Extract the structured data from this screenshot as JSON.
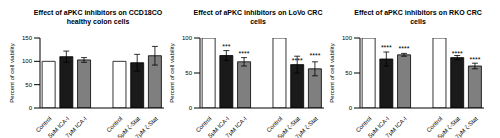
{
  "chart_data": [
    {
      "type": "bar",
      "title": "Effect of aPKC inhibitors on CCD18CO healthy colon cells",
      "y_label": "Percent of cell viability",
      "categories": [
        "Control",
        "5μM ICA-I",
        "7μM ICA-I",
        null,
        "Control",
        "5μM ζ-Stat",
        "7μM ζ-Stat"
      ],
      "values": [
        100,
        110,
        103,
        null,
        100,
        97,
        112
      ],
      "errors": [
        null,
        12,
        5,
        null,
        null,
        18,
        20
      ],
      "annotations": [
        null,
        null,
        null,
        null,
        null,
        null,
        null
      ],
      "colors": [
        "#ffffff",
        "#1a1a1a",
        "#7f7f7f",
        null,
        "#ffffff",
        "#1a1a1a",
        "#7f7f7f"
      ],
      "ylim": [
        0,
        150
      ],
      "yticks": [
        0,
        50,
        100,
        150
      ]
    },
    {
      "type": "bar",
      "title": "Effect of aPKC inhibitors on LoVo CRC cells",
      "y_label": "Percent of cell viability",
      "categories": [
        "Control",
        "5μM ICA-I",
        "7μM ICA-I",
        null,
        "Control",
        "5μM ζ-Stat",
        "7μM ζ-Stat"
      ],
      "values": [
        100,
        75,
        66,
        null,
        100,
        62,
        56
      ],
      "errors": [
        null,
        7,
        6,
        null,
        null,
        12,
        10
      ],
      "annotations": [
        null,
        "***",
        "****",
        null,
        null,
        "****",
        "****"
      ],
      "colors": [
        "#ffffff",
        "#1a1a1a",
        "#7f7f7f",
        null,
        "#ffffff",
        "#1a1a1a",
        "#7f7f7f"
      ],
      "ylim": [
        0,
        100
      ],
      "yticks": [
        0,
        50,
        100
      ]
    },
    {
      "type": "bar",
      "title": "Effect of aPKC inhibitors on RKO CRC cells",
      "y_label": "Percent of cell viability",
      "categories": [
        "Control",
        "5μM ICA-I",
        "7μM ICA-I",
        null,
        "Control",
        "5μM ζ-Stat",
        "7μM ζ-Stat"
      ],
      "values": [
        100,
        70,
        76,
        null,
        100,
        72,
        60
      ],
      "errors": [
        null,
        10,
        2,
        null,
        null,
        3,
        4
      ],
      "annotations": [
        null,
        "****",
        "****",
        null,
        null,
        "****",
        "****"
      ],
      "colors": [
        "#ffffff",
        "#1a1a1a",
        "#7f7f7f",
        null,
        "#ffffff",
        "#1a1a1a",
        "#7f7f7f"
      ],
      "ylim": [
        0,
        100
      ],
      "yticks": [
        0,
        50,
        100
      ]
    }
  ]
}
